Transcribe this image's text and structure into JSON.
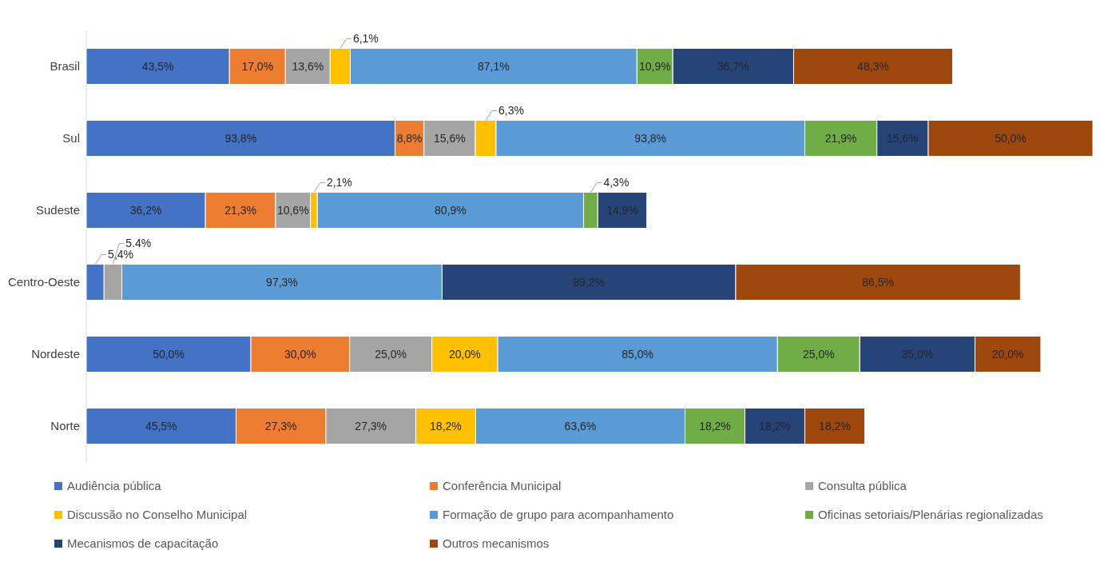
{
  "chart_data": {
    "type": "bar",
    "orientation": "horizontal",
    "stacked": true,
    "data_labels": true,
    "legend": "bottom",
    "categories": [
      "Brasil",
      "Sul",
      "Sudeste",
      "Centro-Oeste",
      "Nordeste",
      "Norte"
    ],
    "series": [
      {
        "name": "Audiência pública",
        "color": "#4472c4",
        "values": [
          43.5,
          93.8,
          36.2,
          5.4,
          50.0,
          45.5
        ],
        "value_labels": [
          "43,5%",
          "93,8%",
          "36,2%",
          "5,4%",
          "50,0%",
          "45,5%"
        ]
      },
      {
        "name": "Conferência Municipal",
        "color": "#ed7d31",
        "values": [
          17.0,
          8.8,
          21.3,
          null,
          30.0,
          27.3
        ],
        "value_labels": [
          "17,0%",
          "8,8%",
          "21,3%",
          null,
          "30,0%",
          "27,3%"
        ]
      },
      {
        "name": "Consulta pública",
        "color": "#a5a5a5",
        "values": [
          13.6,
          15.6,
          10.6,
          5.4,
          25.0,
          27.3
        ],
        "value_labels": [
          "13,6%",
          "15,6%",
          "10,6%",
          "5.4%",
          "25,0%",
          "27,3%"
        ]
      },
      {
        "name": "Discussão no Conselho Municipal",
        "color": "#ffc000",
        "values": [
          6.1,
          6.3,
          2.1,
          null,
          20.0,
          18.2
        ],
        "value_labels": [
          "6,1%",
          "6,3%",
          "2,1%",
          null,
          "20,0%",
          "18,2%"
        ]
      },
      {
        "name": "Formação de grupo para acompanhamento",
        "color": "#5b9bd5",
        "values": [
          87.1,
          93.8,
          80.9,
          97.3,
          85.0,
          63.6
        ],
        "value_labels": [
          "87,1%",
          "93,8%",
          "80,9%",
          "97,3%",
          "85,0%",
          "63,6%"
        ]
      },
      {
        "name": "Oficinas setoriais/Plenárias regionalizadas",
        "color": "#70ad47",
        "values": [
          10.9,
          21.9,
          4.3,
          null,
          25.0,
          18.2
        ],
        "value_labels": [
          "10,9%",
          "21,9%",
          "4,3%",
          null,
          "25,0%",
          "18,2%"
        ]
      },
      {
        "name": "Mecanismos de capacitação",
        "color": "#264478",
        "values": [
          36.7,
          15.6,
          14.9,
          89.2,
          35.0,
          18.2
        ],
        "value_labels": [
          "36,7%",
          "15,6%",
          "14,9%",
          "89,2%",
          "35,0%",
          "18,2%"
        ]
      },
      {
        "name": "Outros mecanismos",
        "color": "#9e480e",
        "values": [
          48.3,
          50.0,
          null,
          86.5,
          20.0,
          18.2
        ],
        "value_labels": [
          "48,3%",
          "50,0%",
          null,
          "86,5%",
          "20,0%",
          "18,2%"
        ]
      }
    ]
  }
}
